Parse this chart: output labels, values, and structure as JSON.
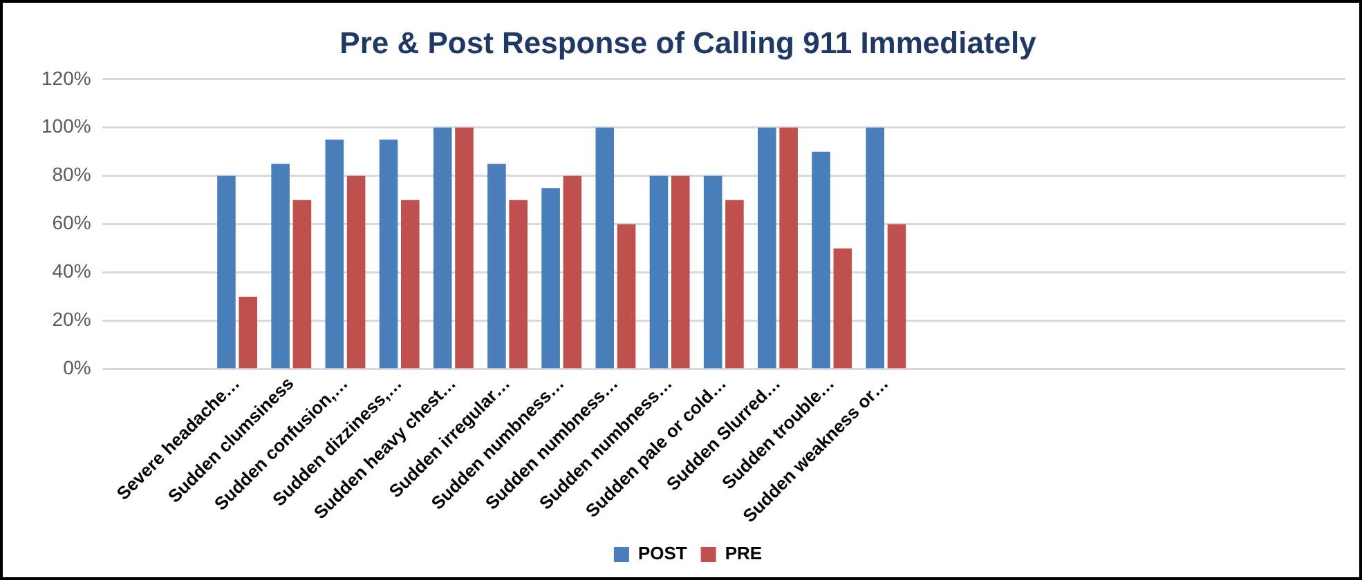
{
  "chart_data": {
    "type": "bar",
    "title": "Pre & Post Response of Calling 911 Immediately",
    "categories": [
      null,
      null,
      "Severe headache…",
      "Sudden clumsiness",
      "Sudden confusion,…",
      "Sudden dizziness,…",
      "Sudden heavy chest…",
      "Sudden irregular…",
      "Sudden numbness…",
      "Sudden numbness…",
      "Sudden numbness…",
      "Sudden pale or cold…",
      "Sudden Slurred…",
      "Sudden trouble…",
      "Sudden weakness or…",
      null,
      null,
      null,
      null,
      null,
      null,
      null,
      null
    ],
    "series": [
      {
        "name": "POST",
        "color": "#4a7ebb",
        "values": [
          null,
          null,
          80,
          85,
          95,
          95,
          100,
          85,
          75,
          100,
          80,
          80,
          100,
          90,
          100,
          null,
          null,
          null,
          null,
          null,
          null,
          null,
          null
        ]
      },
      {
        "name": "PRE",
        "color": "#c0504d",
        "values": [
          null,
          null,
          30,
          70,
          80,
          70,
          100,
          70,
          80,
          60,
          80,
          70,
          100,
          50,
          60,
          null,
          null,
          null,
          null,
          null,
          null,
          null,
          null
        ]
      }
    ],
    "ylim": [
      0,
      120
    ],
    "yticks": [
      {
        "value": 0,
        "label": "0%"
      },
      {
        "value": 20,
        "label": "20%"
      },
      {
        "value": 40,
        "label": "40%"
      },
      {
        "value": 60,
        "label": "60%"
      },
      {
        "value": 80,
        "label": "80%"
      },
      {
        "value": 100,
        "label": "100%"
      },
      {
        "value": 120,
        "label": "120%"
      }
    ],
    "grid": "y",
    "legend": "bottom"
  }
}
